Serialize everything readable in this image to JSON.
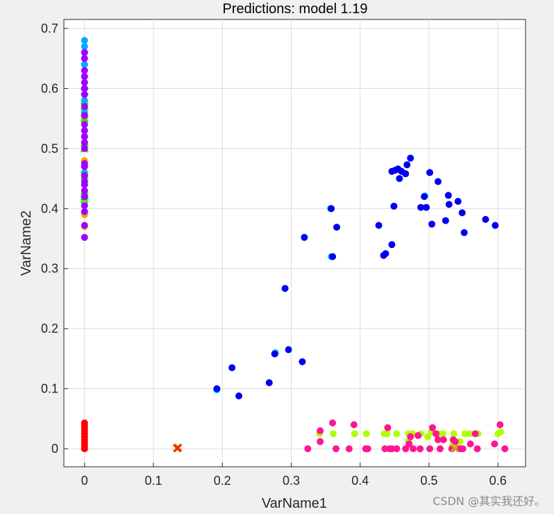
{
  "chart_data": {
    "type": "scatter",
    "title": "Predictions: model 1.19",
    "xlabel": "VarName1",
    "ylabel": "VarName2",
    "xlim": [
      -0.03,
      0.64
    ],
    "ylim": [
      -0.03,
      0.715
    ],
    "xticks": [
      "0",
      "0.1",
      "0.2",
      "0.3",
      "0.4",
      "0.5",
      "0.6"
    ],
    "yticks": [
      "0",
      "0.1",
      "0.2",
      "0.3",
      "0.4",
      "0.5",
      "0.6",
      "0.7"
    ],
    "grid": true,
    "series": [
      {
        "color": "#ff0000",
        "marker": "dot",
        "points": [
          [
            0,
            0
          ],
          [
            0,
            0.005
          ],
          [
            0,
            0.01
          ],
          [
            0,
            0.015
          ],
          [
            0,
            0.02
          ],
          [
            0,
            0.025
          ],
          [
            0,
            0.03
          ],
          [
            0,
            0.035
          ],
          [
            0,
            0.04
          ],
          [
            0,
            0.043
          ]
        ]
      },
      {
        "color": "#ffa500",
        "marker": "dot",
        "points": [
          [
            0,
            0.37
          ],
          [
            0,
            0.39
          ],
          [
            0,
            0.42
          ],
          [
            0,
            0.45
          ],
          [
            0,
            0.48
          ],
          [
            0,
            0.52
          ],
          [
            0,
            0.55
          ],
          [
            0,
            0.58
          ]
        ]
      },
      {
        "color": "#00aaff",
        "marker": "dot",
        "points": [
          [
            0,
            0.68
          ],
          [
            0,
            0.67
          ],
          [
            0,
            0.66
          ],
          [
            0,
            0.64
          ],
          [
            0,
            0.62
          ],
          [
            0,
            0.6
          ],
          [
            0,
            0.58
          ],
          [
            0,
            0.56
          ],
          [
            0,
            0.53
          ],
          [
            0,
            0.51
          ],
          [
            0,
            0.47
          ],
          [
            0,
            0.46
          ],
          [
            0,
            0.44
          ],
          [
            0,
            0.42
          ]
        ]
      },
      {
        "color": "#22ee00",
        "marker": "x",
        "points": [
          [
            0,
            0.595
          ],
          [
            0,
            0.57
          ],
          [
            0,
            0.55
          ],
          [
            0,
            0.5
          ],
          [
            0,
            0.455
          ],
          [
            0,
            0.42
          ],
          [
            0,
            0.415
          ]
        ]
      },
      {
        "color": "#a000ff",
        "marker": "dot",
        "points": [
          [
            0,
            0.66
          ],
          [
            0,
            0.65
          ],
          [
            0,
            0.63
          ],
          [
            0,
            0.62
          ],
          [
            0,
            0.61
          ],
          [
            0,
            0.6
          ],
          [
            0,
            0.59
          ],
          [
            0,
            0.57
          ],
          [
            0,
            0.555
          ],
          [
            0,
            0.54
          ],
          [
            0,
            0.53
          ],
          [
            0,
            0.52
          ],
          [
            0,
            0.51
          ],
          [
            0,
            0.5
          ],
          [
            0,
            0.475
          ],
          [
            0,
            0.47
          ],
          [
            0,
            0.455
          ],
          [
            0,
            0.445
          ],
          [
            0,
            0.44
          ],
          [
            0,
            0.43
          ],
          [
            0,
            0.42
          ],
          [
            0,
            0.405
          ],
          [
            0,
            0.395
          ],
          [
            0,
            0.372
          ],
          [
            0,
            0.352
          ]
        ]
      },
      {
        "color": "#00d0ff",
        "marker": "dot",
        "points": [
          [
            0.192,
            0.098
          ],
          [
            0.277,
            0.16
          ],
          [
            0.357,
            0.4
          ],
          [
            0.358,
            0.32
          ],
          [
            0.494,
            0.421
          ]
        ]
      },
      {
        "color": "#0000ee",
        "marker": "dot",
        "points": [
          [
            0.192,
            0.1
          ],
          [
            0.214,
            0.135
          ],
          [
            0.224,
            0.088
          ],
          [
            0.268,
            0.11
          ],
          [
            0.276,
            0.158
          ],
          [
            0.291,
            0.267
          ],
          [
            0.296,
            0.165
          ],
          [
            0.316,
            0.145
          ],
          [
            0.319,
            0.352
          ],
          [
            0.358,
            0.4
          ],
          [
            0.36,
            0.32
          ],
          [
            0.366,
            0.369
          ],
          [
            0.427,
            0.372
          ],
          [
            0.434,
            0.322
          ],
          [
            0.437,
            0.325
          ],
          [
            0.446,
            0.34
          ],
          [
            0.446,
            0.462
          ],
          [
            0.449,
            0.404
          ],
          [
            0.451,
            0.464
          ],
          [
            0.455,
            0.466
          ],
          [
            0.457,
            0.45
          ],
          [
            0.46,
            0.462
          ],
          [
            0.466,
            0.458
          ],
          [
            0.468,
            0.473
          ],
          [
            0.473,
            0.484
          ],
          [
            0.488,
            0.402
          ],
          [
            0.493,
            0.42
          ],
          [
            0.496,
            0.402
          ],
          [
            0.501,
            0.46
          ],
          [
            0.504,
            0.374
          ],
          [
            0.513,
            0.445
          ],
          [
            0.524,
            0.38
          ],
          [
            0.528,
            0.422
          ],
          [
            0.529,
            0.407
          ],
          [
            0.542,
            0.412
          ],
          [
            0.548,
            0.393
          ],
          [
            0.551,
            0.36
          ],
          [
            0.582,
            0.382
          ],
          [
            0.596,
            0.372
          ]
        ]
      },
      {
        "color": "#b0ff00",
        "marker": "dot",
        "points": [
          [
            0.341,
            0.025
          ],
          [
            0.361,
            0.025
          ],
          [
            0.392,
            0.025
          ],
          [
            0.409,
            0.025
          ],
          [
            0.435,
            0.025
          ],
          [
            0.439,
            0.025
          ],
          [
            0.453,
            0.025
          ],
          [
            0.47,
            0.025
          ],
          [
            0.476,
            0.025
          ],
          [
            0.488,
            0.025
          ],
          [
            0.498,
            0.02
          ],
          [
            0.503,
            0.028
          ],
          [
            0.513,
            0.025
          ],
          [
            0.52,
            0.025
          ],
          [
            0.536,
            0.025
          ],
          [
            0.552,
            0.025
          ],
          [
            0.559,
            0.025
          ],
          [
            0.571,
            0.025
          ],
          [
            0.6,
            0.025
          ],
          [
            0.604,
            0.028
          ],
          [
            0.534,
            0.005
          ],
          [
            0.545,
            0.012
          ],
          [
            0.47,
            0.012
          ]
        ]
      },
      {
        "color": "#ff1493",
        "marker": "dot",
        "points": [
          [
            0.342,
            0.03
          ],
          [
            0.342,
            0.012
          ],
          [
            0.324,
            0
          ],
          [
            0.36,
            0.043
          ],
          [
            0.365,
            0
          ],
          [
            0.384,
            0
          ],
          [
            0.391,
            0.04
          ],
          [
            0.408,
            0
          ],
          [
            0.411,
            0
          ],
          [
            0.436,
            0
          ],
          [
            0.44,
            0.035
          ],
          [
            0.443,
            0
          ],
          [
            0.446,
            0
          ],
          [
            0.453,
            0
          ],
          [
            0.466,
            0
          ],
          [
            0.471,
            0.008
          ],
          [
            0.473,
            0.02
          ],
          [
            0.477,
            0
          ],
          [
            0.484,
            0.022
          ],
          [
            0.487,
            0
          ],
          [
            0.501,
            0
          ],
          [
            0.505,
            0.035
          ],
          [
            0.51,
            0.025
          ],
          [
            0.513,
            0.015
          ],
          [
            0.516,
            0
          ],
          [
            0.521,
            0.015
          ],
          [
            0.533,
            0
          ],
          [
            0.535,
            0.015
          ],
          [
            0.538,
            0.012
          ],
          [
            0.545,
            0
          ],
          [
            0.549,
            0
          ],
          [
            0.56,
            0.008
          ],
          [
            0.567,
            0.025
          ],
          [
            0.57,
            0
          ],
          [
            0.595,
            0.008
          ],
          [
            0.603,
            0.04
          ],
          [
            0.61,
            0
          ]
        ]
      },
      {
        "color": "#ccaa00",
        "marker": "x",
        "points": [
          [
            0.134,
            0.001
          ],
          [
            0.136,
            0.002
          ],
          [
            0.537,
            0.001
          ]
        ]
      },
      {
        "color": "#ff2200",
        "marker": "x",
        "points": [
          [
            0.135,
            0.001
          ]
        ]
      }
    ]
  },
  "watermark": "CSDN @其实我还好。"
}
